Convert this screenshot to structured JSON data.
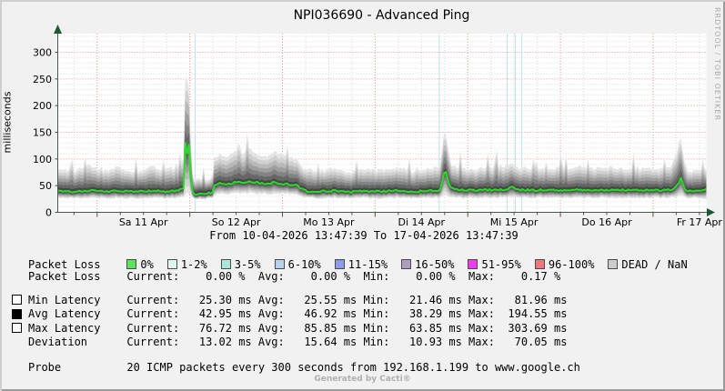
{
  "watermark": "RRDTOOL / TOBI OETIKER",
  "footer": "Generated by Cacti®",
  "packet_loss_legend": {
    "label": "Packet Loss",
    "classes": [
      {
        "label": "0%",
        "color": "#57E657"
      },
      {
        "label": "1-2%",
        "color": "#DCF5F3"
      },
      {
        "label": "3-5%",
        "color": "#ABE5D8"
      },
      {
        "label": "6-10%",
        "color": "#B7D1EF"
      },
      {
        "label": "11-15%",
        "color": "#8E9BE8"
      },
      {
        "label": "16-50%",
        "color": "#B09CC0"
      },
      {
        "label": "51-95%",
        "color": "#F03CF0"
      },
      {
        "label": "96-100%",
        "color": "#EF767A"
      },
      {
        "label": "DEAD / NaN",
        "color": "#C7CFC7"
      }
    ]
  },
  "stats": {
    "col_labels": [
      "Current:",
      "Avg:",
      "Min:",
      "Max:"
    ],
    "rows": [
      {
        "box": "none",
        "label": "Packet Loss",
        "unit": "%",
        "current": "0.00",
        "avg": "0.00",
        "min": "0.00",
        "max": "0.17"
      },
      {
        "box": "outline",
        "label": "Min Latency",
        "unit": "ms",
        "current": "25.30",
        "avg": "25.55",
        "min": "21.46",
        "max": "81.96"
      },
      {
        "box": "filled",
        "label": "Avg Latency",
        "unit": "ms",
        "current": "42.95",
        "avg": "46.92",
        "min": "38.29",
        "max": "194.55"
      },
      {
        "box": "outline",
        "label": "Max Latency",
        "unit": "ms",
        "current": "76.72",
        "avg": "85.85",
        "min": "63.85",
        "max": "303.69"
      },
      {
        "box": "none",
        "label": "Deviation",
        "unit": "ms",
        "current": "13.02",
        "avg": "15.64",
        "min": "10.93",
        "max": "70.05"
      }
    ]
  },
  "probe": {
    "label": "Probe",
    "text": "20 ICMP packets every 300 seconds from 192.168.1.199 to www.google.ch"
  },
  "chart_data": {
    "type": "area",
    "title": "NPI036690 - Advanced Ping",
    "subtitle": "From 10-04-2026 13:47:39 To 17-04-2026 13:47:39",
    "ylabel": "milliseconds",
    "ylim": [
      0,
      300
    ],
    "y_ticks": [
      0,
      50,
      100,
      150,
      200,
      250,
      300
    ],
    "x_range_hours": 168,
    "grid": "on",
    "day_labels": [
      {
        "label": "Sa 11 Apr",
        "noon_h": 22.2
      },
      {
        "label": "So 12 Apr",
        "noon_h": 46.2
      },
      {
        "label": "Mo 13 Apr",
        "noon_h": 70.2
      },
      {
        "label": "Di 14 Apr",
        "noon_h": 94.2
      },
      {
        "label": "Mi 15 Apr",
        "noon_h": 118.2
      },
      {
        "label": "Do 16 Apr",
        "noon_h": 142.2
      },
      {
        "label": "Fr 17 Apr",
        "noon_h": 166.2
      }
    ],
    "midnight_hours": [
      10.2,
      34.2,
      58.2,
      82.2,
      106.2,
      130.2,
      154.2
    ],
    "gap_marker_hours": [
      35.6,
      98.8,
      116.4,
      118.5,
      120.2
    ],
    "series_note": "breakpoints are [hour, avg_ms, min_ms, max_ms] of the latency smoke band",
    "breakpoints": [
      [
        0,
        40,
        27,
        78
      ],
      [
        4,
        39,
        27,
        72
      ],
      [
        8,
        41,
        27,
        85
      ],
      [
        12,
        39,
        26,
        75
      ],
      [
        16,
        40,
        27,
        80
      ],
      [
        20,
        38,
        26,
        72
      ],
      [
        24,
        40,
        27,
        82
      ],
      [
        28,
        39,
        26,
        75
      ],
      [
        31,
        41,
        27,
        80
      ],
      [
        32.6,
        45,
        28,
        92
      ],
      [
        33,
        120,
        32,
        225
      ],
      [
        33.3,
        196,
        40,
        306
      ],
      [
        33.55,
        92,
        35,
        232
      ],
      [
        33.8,
        150,
        38,
        262
      ],
      [
        34.1,
        112,
        34,
        200
      ],
      [
        34.5,
        56,
        30,
        122
      ],
      [
        35,
        36,
        26,
        62
      ],
      [
        36,
        34,
        25,
        56
      ],
      [
        38,
        35,
        25,
        58
      ],
      [
        40,
        36,
        26,
        62
      ],
      [
        40.5,
        50,
        32,
        96
      ],
      [
        42,
        55,
        35,
        106
      ],
      [
        44,
        52,
        34,
        101
      ],
      [
        46,
        57,
        36,
        112
      ],
      [
        48,
        54,
        35,
        106
      ],
      [
        50,
        58,
        36,
        114
      ],
      [
        52,
        55,
        35,
        106
      ],
      [
        54,
        53,
        34,
        101
      ],
      [
        56,
        56,
        35,
        110
      ],
      [
        58,
        54,
        35,
        105
      ],
      [
        60,
        52,
        34,
        100
      ],
      [
        62,
        50,
        33,
        96
      ],
      [
        63,
        44,
        30,
        86
      ],
      [
        64,
        40,
        27,
        78
      ],
      [
        68,
        39,
        26,
        74
      ],
      [
        72,
        40,
        27,
        80
      ],
      [
        76,
        38,
        26,
        72
      ],
      [
        80,
        40,
        27,
        78
      ],
      [
        84,
        39,
        26,
        75
      ],
      [
        88,
        40,
        27,
        80
      ],
      [
        92,
        39,
        26,
        74
      ],
      [
        96,
        40,
        27,
        78
      ],
      [
        98.5,
        41,
        27,
        80
      ],
      [
        99.3,
        45,
        28,
        96
      ],
      [
        99.9,
        70,
        32,
        140
      ],
      [
        100.3,
        82,
        34,
        152
      ],
      [
        100.8,
        68,
        32,
        130
      ],
      [
        101.3,
        52,
        30,
        100
      ],
      [
        102,
        44,
        28,
        82
      ],
      [
        104,
        42,
        27,
        80
      ],
      [
        108,
        41,
        27,
        78
      ],
      [
        112,
        42,
        27,
        80
      ],
      [
        116,
        43,
        28,
        84
      ],
      [
        117.8,
        47,
        29,
        88
      ],
      [
        119,
        43,
        28,
        80
      ],
      [
        124,
        41,
        27,
        78
      ],
      [
        128,
        42,
        27,
        80
      ],
      [
        132,
        41,
        27,
        78
      ],
      [
        136,
        42,
        27,
        82
      ],
      [
        140,
        41,
        27,
        78
      ],
      [
        144,
        42,
        27,
        80
      ],
      [
        148,
        41,
        27,
        78
      ],
      [
        152,
        42,
        27,
        80
      ],
      [
        156,
        41,
        27,
        78
      ],
      [
        159,
        42,
        28,
        82
      ],
      [
        160.8,
        55,
        30,
        120
      ],
      [
        161.4,
        64,
        32,
        138
      ],
      [
        162,
        50,
        30,
        106
      ],
      [
        163,
        40,
        27,
        72
      ],
      [
        165,
        41,
        27,
        75
      ],
      [
        168,
        43,
        26,
        77
      ]
    ],
    "colors": {
      "canvas": "#FFFFFF",
      "background": "#F1F1F1",
      "grid_minor": "#DBDBDB",
      "grid_major": "#F2908F",
      "axis": "#46594C",
      "arrow": "#1E5A31",
      "avg_line": "#2BDB2B",
      "gap_marker": "#BFE2EC",
      "smoke_layers": [
        "#E4E4E4",
        "#D0D0D0",
        "#B9B9B9",
        "#9F9F9F",
        "#838383",
        "#666666",
        "#474747"
      ]
    }
  }
}
